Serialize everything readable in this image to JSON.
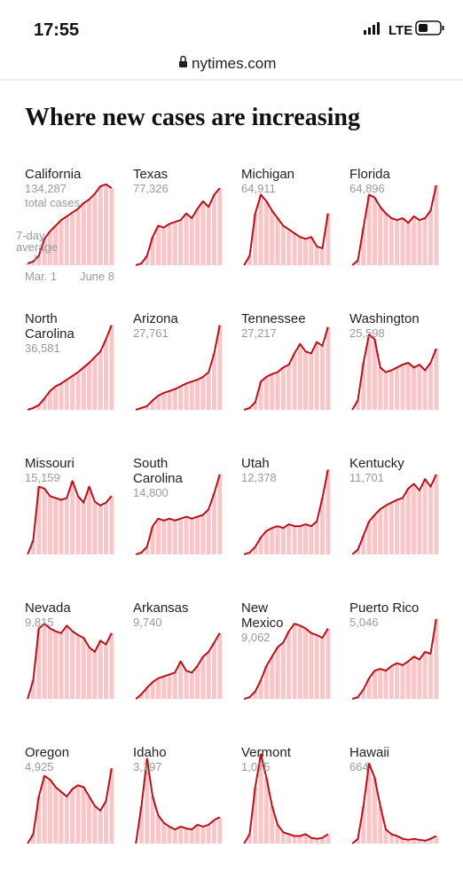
{
  "status": {
    "time": "17:55",
    "network": "LTE"
  },
  "url": "nytimes.com",
  "headline": "Where new cases are increasing",
  "chart_data": [
    {
      "type": "line",
      "title": "California",
      "subtitle": "134,287",
      "note": "total cases",
      "annotation": "7-day average",
      "x": [
        "Mar. 1",
        null,
        null,
        null,
        null,
        null,
        null,
        null,
        null,
        null,
        null,
        null,
        null,
        null,
        null,
        "June 8"
      ],
      "ylim": [
        0,
        100
      ],
      "values": [
        2,
        4,
        10,
        28,
        36,
        42,
        48,
        52,
        56,
        60,
        66,
        70,
        76,
        84,
        86,
        82
      ]
    },
    {
      "type": "line",
      "title": "Texas",
      "subtitle": "77,326",
      "ylim": [
        0,
        100
      ],
      "values": [
        0,
        2,
        10,
        30,
        42,
        40,
        44,
        46,
        48,
        55,
        50,
        60,
        68,
        62,
        75,
        82
      ]
    },
    {
      "type": "line",
      "title": "Michigan",
      "subtitle": "64,911",
      "ylim": [
        0,
        100
      ],
      "values": [
        0,
        10,
        55,
        75,
        68,
        58,
        50,
        42,
        38,
        34,
        30,
        28,
        30,
        20,
        18,
        55
      ]
    },
    {
      "type": "line",
      "title": "Florida",
      "subtitle": "64,896",
      "ylim": [
        0,
        100
      ],
      "values": [
        0,
        5,
        40,
        75,
        72,
        62,
        55,
        50,
        48,
        50,
        45,
        52,
        48,
        50,
        58,
        85
      ]
    },
    {
      "type": "line",
      "title": "North Carolina",
      "subtitle": "36,581",
      "ylim": [
        0,
        100
      ],
      "values": [
        0,
        2,
        5,
        12,
        20,
        25,
        28,
        32,
        36,
        40,
        45,
        50,
        56,
        62,
        75,
        90
      ]
    },
    {
      "type": "line",
      "title": "Arizona",
      "subtitle": "27,761",
      "ylim": [
        0,
        100
      ],
      "values": [
        0,
        2,
        4,
        10,
        15,
        18,
        20,
        22,
        25,
        28,
        30,
        32,
        35,
        40,
        60,
        90
      ]
    },
    {
      "type": "line",
      "title": "Tennessee",
      "subtitle": "27,217",
      "ylim": [
        0,
        100
      ],
      "values": [
        0,
        2,
        8,
        30,
        35,
        38,
        40,
        45,
        48,
        60,
        70,
        62,
        60,
        72,
        68,
        88
      ]
    },
    {
      "type": "line",
      "title": "Washington",
      "subtitle": "25,598",
      "ylim": [
        0,
        100
      ],
      "values": [
        0,
        10,
        50,
        80,
        75,
        45,
        40,
        42,
        45,
        48,
        50,
        45,
        48,
        42,
        50,
        65
      ]
    },
    {
      "type": "line",
      "title": "Missouri",
      "subtitle": "15,159",
      "ylim": [
        0,
        100
      ],
      "values": [
        0,
        15,
        72,
        70,
        62,
        60,
        58,
        60,
        78,
        62,
        55,
        72,
        56,
        52,
        55,
        62
      ]
    },
    {
      "type": "line",
      "title": "South Carolina",
      "subtitle": "14,800",
      "ylim": [
        0,
        100
      ],
      "values": [
        0,
        2,
        8,
        30,
        38,
        36,
        38,
        36,
        38,
        40,
        38,
        40,
        42,
        48,
        65,
        85
      ]
    },
    {
      "type": "line",
      "title": "Utah",
      "subtitle": "12,378",
      "ylim": [
        0,
        100
      ],
      "values": [
        0,
        2,
        8,
        18,
        25,
        28,
        30,
        28,
        32,
        30,
        30,
        32,
        30,
        35,
        60,
        90
      ]
    },
    {
      "type": "line",
      "title": "Kentucky",
      "subtitle": "11,701",
      "ylim": [
        0,
        100
      ],
      "values": [
        0,
        5,
        20,
        35,
        42,
        48,
        52,
        55,
        58,
        60,
        70,
        75,
        68,
        80,
        72,
        85
      ]
    },
    {
      "type": "line",
      "title": "Nevada",
      "subtitle": "9,815",
      "ylim": [
        0,
        100
      ],
      "values": [
        0,
        20,
        75,
        80,
        75,
        72,
        70,
        78,
        72,
        68,
        65,
        55,
        50,
        62,
        58,
        70
      ]
    },
    {
      "type": "line",
      "title": "Arkansas",
      "subtitle": "9,740",
      "ylim": [
        0,
        100
      ],
      "values": [
        0,
        5,
        12,
        18,
        22,
        24,
        26,
        28,
        40,
        30,
        28,
        35,
        45,
        50,
        60,
        70
      ]
    },
    {
      "type": "line",
      "title": "New Mexico",
      "subtitle": "9,062",
      "ylim": [
        0,
        100
      ],
      "values": [
        0,
        2,
        8,
        20,
        35,
        45,
        55,
        60,
        72,
        80,
        78,
        75,
        70,
        68,
        65,
        75
      ]
    },
    {
      "type": "line",
      "title": "Puerto Rico",
      "subtitle": "5,046",
      "ylim": [
        0,
        100
      ],
      "values": [
        0,
        2,
        10,
        22,
        30,
        32,
        30,
        35,
        38,
        36,
        40,
        45,
        42,
        50,
        48,
        85
      ]
    },
    {
      "type": "line",
      "title": "Oregon",
      "subtitle": "4,925",
      "ylim": [
        0,
        100
      ],
      "values": [
        0,
        10,
        50,
        72,
        68,
        60,
        55,
        50,
        58,
        62,
        60,
        50,
        40,
        35,
        45,
        80
      ]
    },
    {
      "type": "line",
      "title": "Idaho",
      "subtitle": "3,197",
      "ylim": [
        0,
        100
      ],
      "values": [
        0,
        40,
        90,
        50,
        30,
        22,
        18,
        15,
        18,
        16,
        15,
        20,
        18,
        20,
        25,
        28
      ]
    },
    {
      "type": "line",
      "title": "Vermont",
      "subtitle": "1,075",
      "ylim": [
        0,
        100
      ],
      "values": [
        0,
        10,
        60,
        95,
        70,
        40,
        20,
        12,
        10,
        8,
        8,
        10,
        6,
        5,
        6,
        10
      ]
    },
    {
      "type": "line",
      "title": "Hawaii",
      "subtitle": "664",
      "ylim": [
        0,
        100
      ],
      "values": [
        0,
        5,
        40,
        85,
        70,
        40,
        15,
        10,
        8,
        5,
        4,
        5,
        4,
        3,
        5,
        8
      ]
    }
  ]
}
